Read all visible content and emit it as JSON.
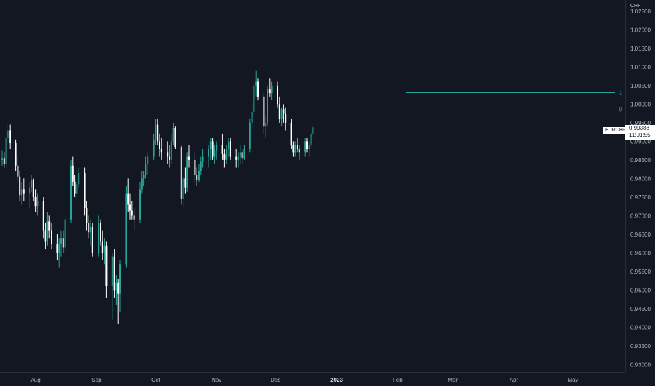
{
  "chart_data": {
    "type": "candlestick",
    "symbol": "EURCHF",
    "currency": "CHF",
    "last_price": "0.99388",
    "countdown": "11:01:55",
    "ylim": [
      0.928,
      1.028
    ],
    "y_ticks": [
      "1.02500",
      "1.02000",
      "1.01500",
      "1.01000",
      "1.00500",
      "1.00000",
      "0.99500",
      "0.99000",
      "0.98500",
      "0.98000",
      "0.97500",
      "0.97000",
      "0.96500",
      "0.96000",
      "0.95500",
      "0.95000",
      "0.94500",
      "0.94000",
      "0.93500",
      "0.93000"
    ],
    "x_ticks": [
      {
        "label": "Aug",
        "day": 17,
        "bold": false
      },
      {
        "label": "Sep",
        "day": 48,
        "bold": false
      },
      {
        "label": "Oct",
        "day": 78,
        "bold": false
      },
      {
        "label": "Nov",
        "day": 109,
        "bold": false
      },
      {
        "label": "Dec",
        "day": 139,
        "bold": false
      },
      {
        "label": "2023",
        "day": 170,
        "bold": true
      },
      {
        "label": "Feb",
        "day": 201,
        "bold": false
      },
      {
        "label": "Mar",
        "day": 229,
        "bold": false
      },
      {
        "label": "Apr",
        "day": 260,
        "bold": false
      },
      {
        "label": "May",
        "day": 290,
        "bold": false
      }
    ],
    "levels": [
      {
        "label": "1",
        "value": 1.0032,
        "from_day": 205
      },
      {
        "label": "0",
        "value": 0.9988,
        "from_day": 205
      }
    ],
    "colors": {
      "up": "#26a69a",
      "down": "#ffffff",
      "bg": "#131722",
      "grid_line": "#2a2e39"
    },
    "candles": [
      [
        0,
        0.985,
        0.9875,
        0.9835,
        0.9855
      ],
      [
        1,
        0.9855,
        0.987,
        0.983,
        0.984
      ],
      [
        2,
        0.984,
        0.9925,
        0.9825,
        0.991
      ],
      [
        3,
        0.991,
        0.995,
        0.989,
        0.993
      ],
      [
        4,
        0.993,
        0.9945,
        0.988,
        0.9895
      ],
      [
        7,
        0.9895,
        0.9905,
        0.982,
        0.9835
      ],
      [
        8,
        0.9835,
        0.986,
        0.979,
        0.9805
      ],
      [
        9,
        0.9805,
        0.982,
        0.974,
        0.9755
      ],
      [
        10,
        0.9755,
        0.979,
        0.973,
        0.977
      ],
      [
        11,
        0.977,
        0.98,
        0.974,
        0.976
      ],
      [
        14,
        0.976,
        0.979,
        0.972,
        0.9775
      ],
      [
        15,
        0.9775,
        0.981,
        0.9765,
        0.9795
      ],
      [
        16,
        0.9795,
        0.98,
        0.974,
        0.975
      ],
      [
        17,
        0.975,
        0.977,
        0.971,
        0.9725
      ],
      [
        18,
        0.9725,
        0.976,
        0.97,
        0.974
      ],
      [
        21,
        0.974,
        0.975,
        0.964,
        0.966
      ],
      [
        22,
        0.966,
        0.968,
        0.961,
        0.963
      ],
      [
        23,
        0.963,
        0.971,
        0.962,
        0.9685
      ],
      [
        24,
        0.9685,
        0.97,
        0.964,
        0.966
      ],
      [
        25,
        0.966,
        0.968,
        0.961,
        0.9625
      ],
      [
        28,
        0.9625,
        0.965,
        0.958,
        0.96
      ],
      [
        29,
        0.96,
        0.964,
        0.956,
        0.9625
      ],
      [
        30,
        0.9625,
        0.966,
        0.959,
        0.964
      ],
      [
        31,
        0.964,
        0.966,
        0.96,
        0.9615
      ],
      [
        32,
        0.9615,
        0.97,
        0.96,
        0.969
      ],
      [
        35,
        0.969,
        0.985,
        0.968,
        0.9835
      ],
      [
        36,
        0.9835,
        0.986,
        0.978,
        0.979
      ],
      [
        37,
        0.979,
        0.981,
        0.975,
        0.976
      ],
      [
        38,
        0.976,
        0.98,
        0.974,
        0.9785
      ],
      [
        39,
        0.9785,
        0.983,
        0.9775,
        0.9815
      ],
      [
        42,
        0.9815,
        0.983,
        0.97,
        0.972
      ],
      [
        43,
        0.972,
        0.974,
        0.966,
        0.968
      ],
      [
        44,
        0.968,
        0.97,
        0.964,
        0.9655
      ],
      [
        45,
        0.9655,
        0.969,
        0.962,
        0.967
      ],
      [
        46,
        0.967,
        0.968,
        0.959,
        0.96
      ],
      [
        49,
        0.96,
        0.97,
        0.959,
        0.968
      ],
      [
        50,
        0.968,
        0.969,
        0.962,
        0.963
      ],
      [
        51,
        0.963,
        0.966,
        0.958,
        0.96
      ],
      [
        52,
        0.96,
        0.964,
        0.957,
        0.962
      ],
      [
        53,
        0.962,
        0.963,
        0.948,
        0.951
      ],
      [
        56,
        0.951,
        0.96,
        0.942,
        0.959
      ],
      [
        57,
        0.959,
        0.961,
        0.948,
        0.95
      ],
      [
        58,
        0.95,
        0.954,
        0.946,
        0.952
      ],
      [
        59,
        0.952,
        0.953,
        0.941,
        0.949
      ],
      [
        60,
        0.949,
        0.958,
        0.944,
        0.957
      ],
      [
        63,
        0.957,
        0.978,
        0.956,
        0.976
      ],
      [
        64,
        0.976,
        0.98,
        0.971,
        0.973
      ],
      [
        65,
        0.973,
        0.976,
        0.969,
        0.9715
      ],
      [
        66,
        0.9715,
        0.974,
        0.969,
        0.97
      ],
      [
        67,
        0.97,
        0.972,
        0.966,
        0.969
      ],
      [
        70,
        0.969,
        0.979,
        0.968,
        0.977
      ],
      [
        71,
        0.977,
        0.982,
        0.976,
        0.98
      ],
      [
        72,
        0.98,
        0.982,
        0.978,
        0.981
      ],
      [
        73,
        0.981,
        0.986,
        0.98,
        0.984
      ],
      [
        74,
        0.984,
        0.987,
        0.981,
        0.986
      ],
      [
        77,
        0.986,
        0.992,
        0.985,
        0.9905
      ],
      [
        78,
        0.9905,
        0.996,
        0.989,
        0.9945
      ],
      [
        79,
        0.9945,
        0.996,
        0.989,
        0.99
      ],
      [
        80,
        0.99,
        0.992,
        0.986,
        0.988
      ],
      [
        81,
        0.988,
        0.991,
        0.985,
        0.987
      ],
      [
        84,
        0.987,
        0.99,
        0.984,
        0.986
      ],
      [
        85,
        0.986,
        0.989,
        0.983,
        0.985
      ],
      [
        86,
        0.985,
        0.992,
        0.984,
        0.99
      ],
      [
        87,
        0.99,
        0.995,
        0.989,
        0.9935
      ],
      [
        88,
        0.9935,
        0.994,
        0.988,
        0.9885
      ],
      [
        91,
        0.9885,
        0.989,
        0.973,
        0.9745
      ],
      [
        92,
        0.9745,
        0.981,
        0.972,
        0.98
      ],
      [
        93,
        0.98,
        0.983,
        0.976,
        0.9775
      ],
      [
        94,
        0.9775,
        0.987,
        0.9765,
        0.986
      ],
      [
        95,
        0.986,
        0.989,
        0.983,
        0.985
      ],
      [
        98,
        0.985,
        0.987,
        0.979,
        0.981
      ],
      [
        99,
        0.981,
        0.983,
        0.978,
        0.9795
      ],
      [
        100,
        0.9795,
        0.984,
        0.979,
        0.982
      ],
      [
        101,
        0.982,
        0.986,
        0.981,
        0.9845
      ],
      [
        102,
        0.9845,
        0.988,
        0.983,
        0.986
      ],
      [
        105,
        0.986,
        0.989,
        0.983,
        0.988
      ],
      [
        106,
        0.988,
        0.991,
        0.985,
        0.99
      ],
      [
        107,
        0.99,
        0.991,
        0.985,
        0.986
      ],
      [
        108,
        0.986,
        0.989,
        0.984,
        0.9875
      ],
      [
        109,
        0.9875,
        0.99,
        0.985,
        0.989
      ],
      [
        112,
        0.989,
        0.992,
        0.985,
        0.9865
      ],
      [
        113,
        0.9865,
        0.988,
        0.983,
        0.985
      ],
      [
        114,
        0.985,
        0.989,
        0.984,
        0.988
      ],
      [
        115,
        0.988,
        0.991,
        0.986,
        0.99
      ],
      [
        116,
        0.99,
        0.991,
        0.985,
        0.986
      ],
      [
        119,
        0.986,
        0.988,
        0.983,
        0.985
      ],
      [
        120,
        0.985,
        0.987,
        0.983,
        0.986
      ],
      [
        121,
        0.986,
        0.989,
        0.984,
        0.987
      ],
      [
        122,
        0.987,
        0.988,
        0.984,
        0.9855
      ],
      [
        123,
        0.9855,
        0.989,
        0.985,
        0.988
      ],
      [
        126,
        0.988,
        0.996,
        0.987,
        0.995
      ],
      [
        127,
        0.995,
        1.0,
        0.993,
        0.998
      ],
      [
        128,
        0.998,
        1.006,
        0.997,
        1.005
      ],
      [
        129,
        1.005,
        1.009,
        1.002,
        1.006
      ],
      [
        130,
        1.006,
        1.007,
        1.001,
        1.002
      ],
      [
        133,
        1.002,
        1.003,
        0.992,
        0.994
      ],
      [
        134,
        0.994,
        0.997,
        0.991,
        0.995
      ],
      [
        135,
        0.995,
        1.005,
        0.994,
        1.004
      ],
      [
        136,
        1.004,
        1.007,
        1.002,
        1.003
      ],
      [
        137,
        1.003,
        1.006,
        1.001,
        1.005
      ],
      [
        140,
        1.005,
        1.006,
        0.999,
        1.0
      ],
      [
        141,
        1.0,
        1.002,
        0.995,
        0.996
      ],
      [
        142,
        0.996,
        0.999,
        0.994,
        0.9985
      ],
      [
        143,
        0.9985,
        1.0,
        0.995,
        0.9975
      ],
      [
        144,
        0.9975,
        0.999,
        0.993,
        0.995
      ],
      [
        147,
        0.995,
        0.996,
        0.988,
        0.989
      ],
      [
        148,
        0.989,
        0.99,
        0.986,
        0.987
      ],
      [
        149,
        0.987,
        0.99,
        0.986,
        0.989
      ],
      [
        150,
        0.989,
        0.991,
        0.987,
        0.988
      ],
      [
        151,
        0.988,
        0.989,
        0.985,
        0.987
      ],
      [
        154,
        0.987,
        0.991,
        0.986,
        0.99
      ],
      [
        155,
        0.99,
        0.991,
        0.987,
        0.988
      ],
      [
        156,
        0.988,
        0.99,
        0.986,
        0.989
      ],
      [
        157,
        0.989,
        0.993,
        0.988,
        0.992
      ],
      [
        158,
        0.992,
        0.9945,
        0.991,
        0.9938
      ]
    ]
  }
}
